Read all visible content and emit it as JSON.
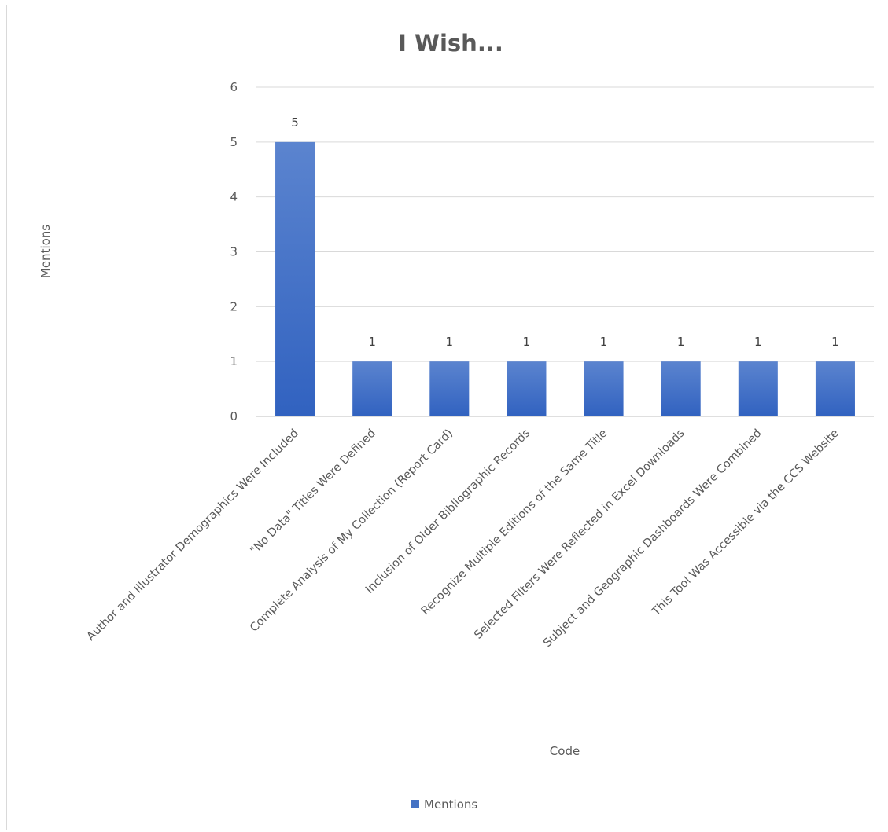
{
  "chart_data": {
    "type": "bar",
    "title": "I Wish...",
    "xlabel": "Code",
    "ylabel": "Mentions",
    "ylim": [
      0,
      6
    ],
    "yticks": [
      0,
      1,
      2,
      3,
      4,
      5,
      6
    ],
    "grid": true,
    "legend_position": "bottom",
    "categories": [
      "Author and Illustrator Demographics Were Included",
      "\"No Data\" Titles Were Defined",
      "Complete Analysis of My Collection (Report Card)",
      "Inclusion of Older Bibliographic Records",
      "Recognize Multiple Editions of the Same Title",
      "Selected Filters Were Reflected in Excel Downloads",
      "Subject and Geographic Dashboards Were Combined",
      "This Tool Was Accessible via the CCS Website"
    ],
    "series": [
      {
        "name": "Mentions",
        "color": "#4472c4",
        "values": [
          5,
          1,
          1,
          1,
          1,
          1,
          1,
          1
        ]
      }
    ]
  }
}
